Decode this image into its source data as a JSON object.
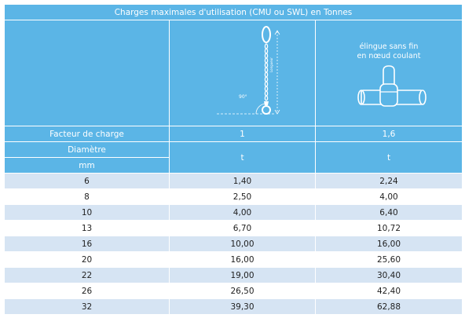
{
  "table": {
    "title": "Charges maximales d'utilisation (CMU ou SWL) en Tonnes",
    "chain_angle": "90°",
    "chain_side_label": "Longueur",
    "sling_label_line1": "élingue sans fin",
    "sling_label_line2": "en nœud coulant",
    "factor_label": "Facteur de charge",
    "factor_values": [
      "1",
      "1,6"
    ],
    "diameter_label": "Diamètre",
    "diameter_unit": "mm",
    "load_unit": "t",
    "rows": [
      {
        "d": "6",
        "a": "1,40",
        "b": "2,24"
      },
      {
        "d": "8",
        "a": "2,50",
        "b": "4,00"
      },
      {
        "d": "10",
        "a": "4,00",
        "b": "6,40"
      },
      {
        "d": "13",
        "a": "6,70",
        "b": "10,72"
      },
      {
        "d": "16",
        "a": "10,00",
        "b": "16,00"
      },
      {
        "d": "20",
        "a": "16,00",
        "b": "25,60"
      },
      {
        "d": "22",
        "a": "19,00",
        "b": "30,40"
      },
      {
        "d": "26",
        "a": "26,50",
        "b": "42,40"
      },
      {
        "d": "32",
        "a": "39,30",
        "b": "62,88"
      }
    ]
  }
}
